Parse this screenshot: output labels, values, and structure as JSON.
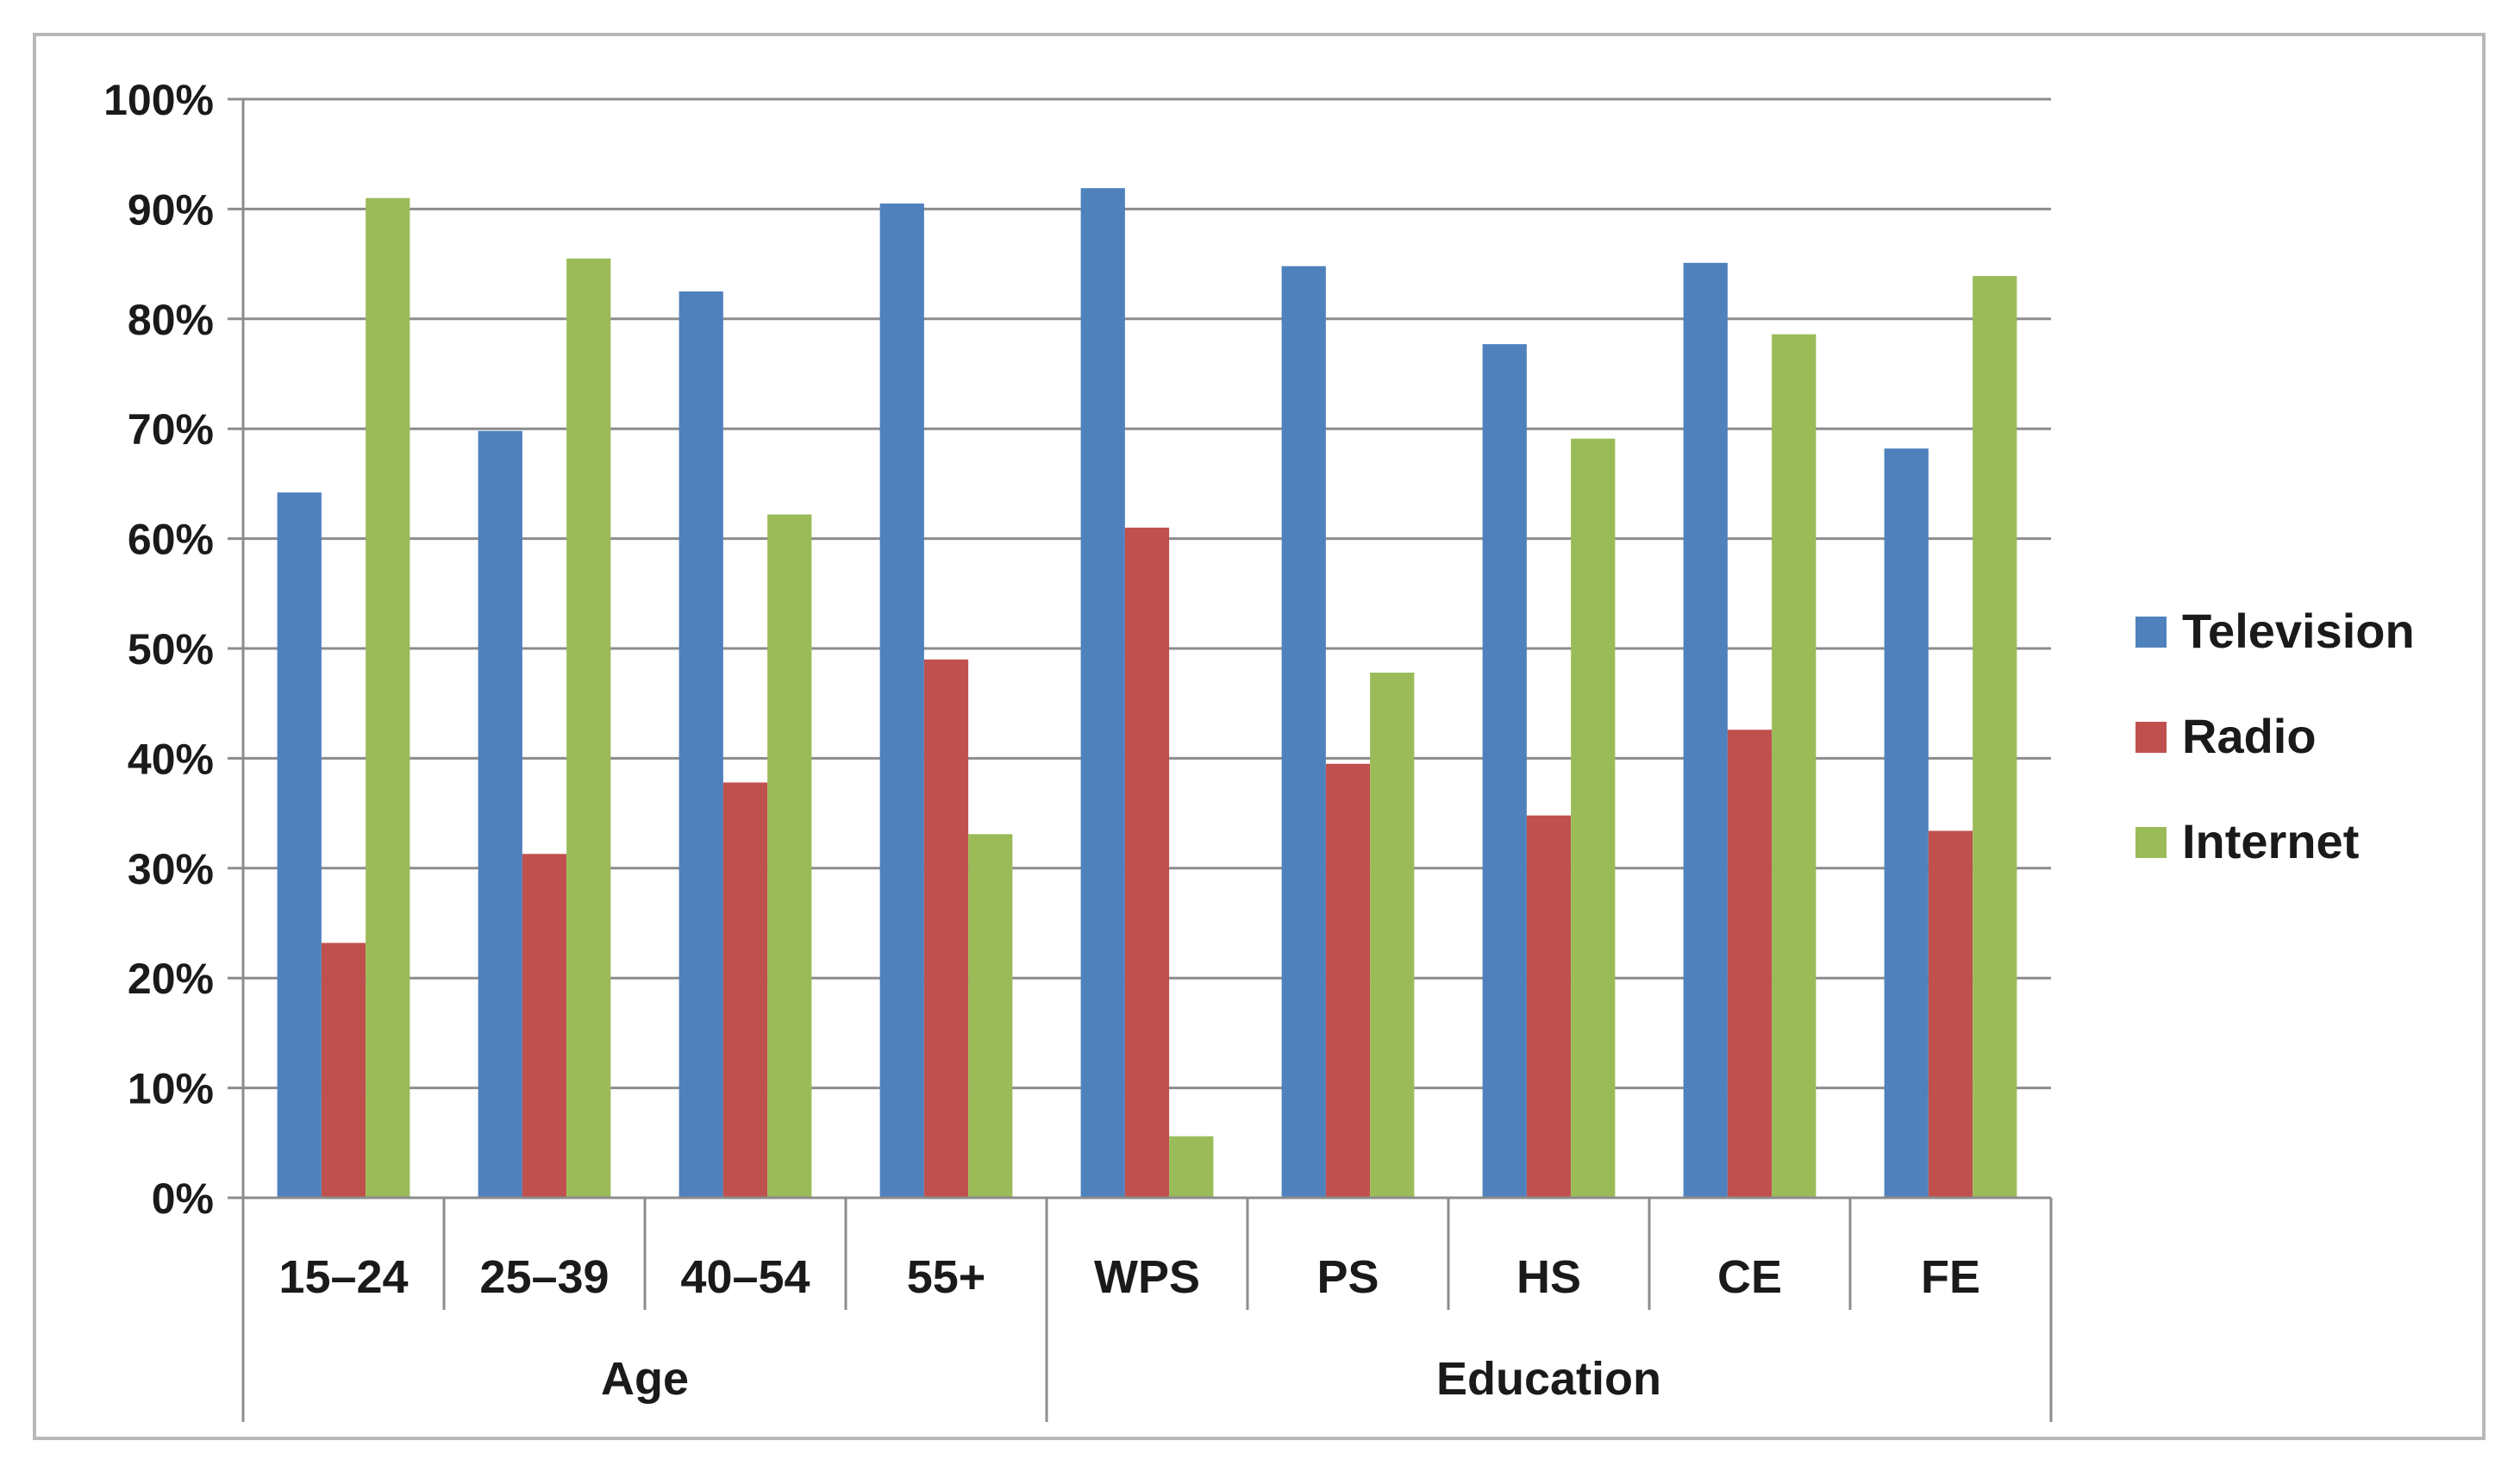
{
  "chart_data": {
    "type": "bar",
    "title": "",
    "xlabel": "",
    "ylabel": "",
    "ylim": [
      0,
      100
    ],
    "y_tick_format": "percent",
    "y_ticks": [
      "0%",
      "10%",
      "20%",
      "30%",
      "40%",
      "50%",
      "60%",
      "70%",
      "80%",
      "90%",
      "100%"
    ],
    "grid": true,
    "legend_position": "right",
    "groups": [
      {
        "label": "Age",
        "categories": [
          "15–24",
          "25–39",
          "40–54",
          "55+"
        ]
      },
      {
        "label": "Education",
        "categories": [
          "WPS",
          "PS",
          "HS",
          "CE",
          "FE"
        ]
      }
    ],
    "categories": [
      "15–24",
      "25–39",
      "40–54",
      "55+",
      "WPS",
      "PS",
      "HS",
      "CE",
      "FE"
    ],
    "series": [
      {
        "name": "Television",
        "color": "#4f81bd",
        "values": [
          64.2,
          69.8,
          82.5,
          90.5,
          91.9,
          84.8,
          77.7,
          85.1,
          68.2
        ]
      },
      {
        "name": "Radio",
        "color": "#c0504d",
        "values": [
          23.2,
          31.3,
          37.8,
          49.0,
          61.0,
          39.5,
          34.8,
          42.6,
          33.4
        ]
      },
      {
        "name": "Internet",
        "color": "#9bbb59",
        "values": [
          91.0,
          85.5,
          62.2,
          33.1,
          5.6,
          47.8,
          69.1,
          78.6,
          83.9
        ]
      }
    ]
  }
}
